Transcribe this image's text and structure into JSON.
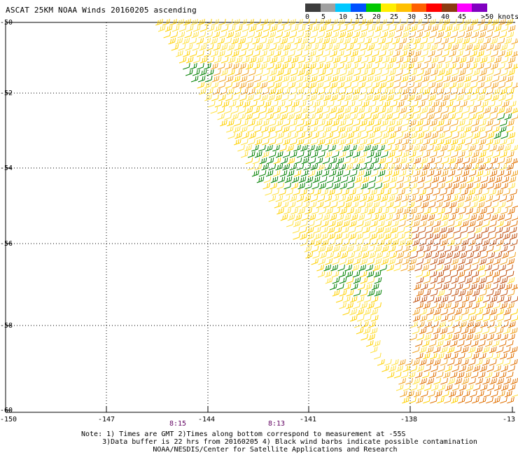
{
  "title": "ASCAT 25KM NOAA Winds 20160205 ascending",
  "colorbar": {
    "labels": [
      "0",
      "5",
      "10",
      "15",
      "20",
      "25",
      "30",
      "35",
      "40",
      "45",
      ">50 knots"
    ],
    "colors": [
      "#3c3c3c",
      "#a0a0a0",
      "#00c8ff",
      "#0050ff",
      "#00c800",
      "#ffee00",
      "#ffc000",
      "#ff6000",
      "#ff0000",
      "#8b3a10",
      "#ff00ff",
      "#8000c0"
    ]
  },
  "map": {
    "lat_labels": [
      "-50",
      "-52",
      "-54",
      "-56",
      "-58",
      "-60"
    ],
    "lon_labels": [
      "-150",
      "-147",
      "-144",
      "-141",
      "-138",
      "-13"
    ],
    "time_labels": [
      "8:15",
      "8:13"
    ],
    "barb_colors": {
      "yellow": "#ffe040",
      "light_yellow": "#ffd000",
      "orange": "#f0a020",
      "dark_orange": "#e07000",
      "rust": "#c05010",
      "green": "#008000"
    }
  },
  "notes": {
    "line1": "Note: 1) Times are GMT 2)Times along bottom correspond to measurement at -55S",
    "line2": "3)Data buffer is 22 hrs from 20160205 4) Black wind barbs indicate possible contamination",
    "line3": "NOAA/NESDIS/Center for Satellite Applications and Research"
  }
}
